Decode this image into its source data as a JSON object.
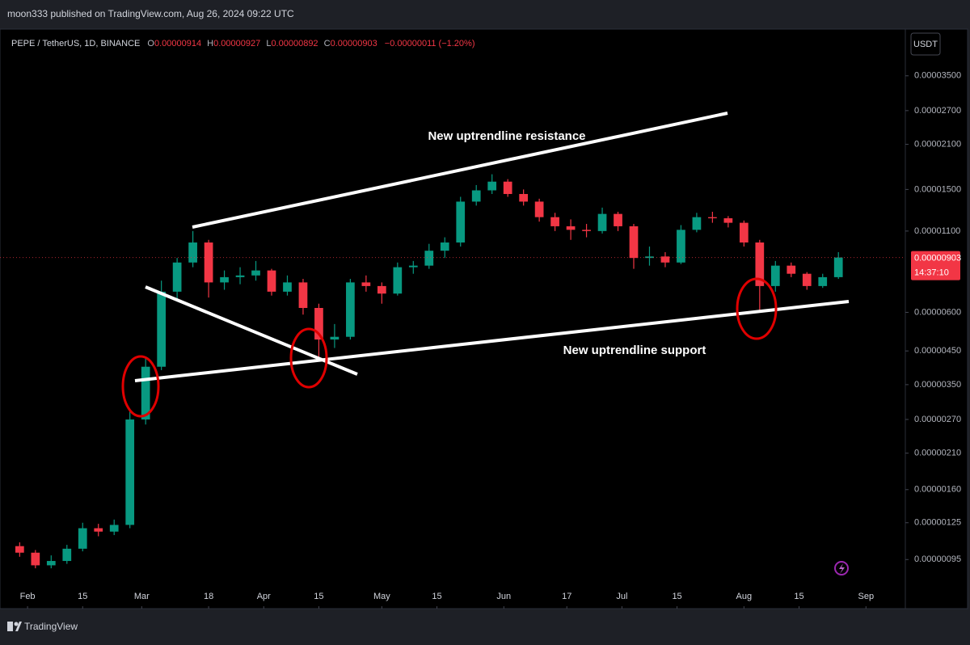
{
  "header": {
    "published": "moon333 published on TradingView.com, Aug 26, 2024 09:22 UTC"
  },
  "chart_data": {
    "type": "candlestick",
    "title": "PEPE / TetherUS, 1D, BINANCE",
    "ohlc_legend": [
      {
        "key": "O",
        "value": "0.00000914"
      },
      {
        "key": "H",
        "value": "0.00000927"
      },
      {
        "key": "L",
        "value": "0.00000892"
      },
      {
        "key": "C",
        "value": "0.00000903"
      }
    ],
    "change": "−0.00000011 (−1.20%)",
    "currency": "USDT",
    "up_color": "#089981",
    "down_color": "#f23645",
    "log_scale": true,
    "x": [
      "01-30",
      "02-03",
      "02-07",
      "02-11",
      "02-15",
      "02-19",
      "02-23",
      "02-27",
      "03-02",
      "03-06",
      "03-10",
      "03-14",
      "03-18",
      "03-22",
      "03-26",
      "03-30",
      "04-03",
      "04-07",
      "04-11",
      "04-15",
      "04-19",
      "04-23",
      "04-27",
      "05-01",
      "05-05",
      "05-09",
      "05-13",
      "05-17",
      "05-21",
      "05-25",
      "05-29",
      "06-02",
      "06-06",
      "06-10",
      "06-14",
      "06-18",
      "06-22",
      "06-26",
      "06-30",
      "07-04",
      "07-08",
      "07-12",
      "07-16",
      "07-20",
      "07-24",
      "07-28",
      "08-01",
      "08-05",
      "08-09",
      "08-13",
      "08-17",
      "08-21",
      "08-25"
    ],
    "open": [
      1.05e-06,
      1e-06,
      9.1e-07,
      9.4e-07,
      1.03e-06,
      1.2e-06,
      1.17e-06,
      1.23e-06,
      2.7e-06,
      4e-06,
      7e-06,
      8.7e-06,
      1.01e-05,
      7.5e-06,
      7.8e-06,
      7.9e-06,
      8.2e-06,
      7e-06,
      7.5e-06,
      6.2e-06,
      4.9e-06,
      5e-06,
      7.5e-06,
      7.3e-06,
      6.9e-06,
      8.4e-06,
      8.5e-06,
      9.5e-06,
      1.01e-05,
      1.37e-05,
      1.49e-05,
      1.59e-05,
      1.45e-05,
      1.37e-05,
      1.22e-05,
      1.14e-05,
      1.11e-05,
      1.1e-05,
      1.25e-05,
      1.14e-05,
      9e-06,
      9.1e-06,
      8.7e-06,
      1.11e-05,
      1.22e-05,
      1.21e-05,
      1.17e-05,
      1.01e-05,
      7.3e-06,
      8.5e-06,
      8e-06,
      7.3e-06,
      7.8e-06
    ],
    "high": [
      1.08e-06,
      1.02e-06,
      9.8e-07,
      1.06e-06,
      1.25e-06,
      1.24e-06,
      1.28e-06,
      2.9e-06,
      4.3e-06,
      7.6e-06,
      9e-06,
      1.1e-05,
      1.03e-05,
      8.2e-06,
      8.4e-06,
      8.8e-06,
      8.3e-06,
      7.9e-06,
      7.7e-06,
      6.4e-06,
      5.5e-06,
      7.7e-06,
      7.9e-06,
      7.5e-06,
      8.7e-06,
      8.8e-06,
      1e-05,
      1.05e-05,
      1.42e-05,
      1.55e-05,
      1.68e-05,
      1.62e-05,
      1.5e-05,
      1.4e-05,
      1.26e-05,
      1.2e-05,
      1.16e-05,
      1.31e-05,
      1.27e-05,
      1.16e-05,
      9.8e-06,
      9.4e-06,
      1.15e-05,
      1.26e-05,
      1.27e-05,
      1.23e-05,
      1.19e-05,
      1.03e-05,
      8.8e-06,
      8.7e-06,
      8.1e-06,
      8e-06,
      9.4e-06
    ],
    "low": [
      9.7e-07,
      8.9e-07,
      8.9e-07,
      9.2e-07,
      1.01e-06,
      1.13e-06,
      1.14e-06,
      1.2e-06,
      2.6e-06,
      3.9e-06,
      6.5e-06,
      8.4e-06,
      6.7e-06,
      7.1e-06,
      7.4e-06,
      7.6e-06,
      6.8e-06,
      6.8e-06,
      5.9e-06,
      4.3e-06,
      4.6e-06,
      4.9e-06,
      7e-06,
      6.4e-06,
      6.8e-06,
      8e-06,
      8.3e-06,
      9e-06,
      9.8e-06,
      1.33e-05,
      1.45e-05,
      1.42e-05,
      1.33e-05,
      1.18e-05,
      1.1e-05,
      1.03e-05,
      1.05e-05,
      1.08e-05,
      1.1e-05,
      8.3e-06,
      8.5e-06,
      8.4e-06,
      8.6e-06,
      1.09e-05,
      1.17e-05,
      1.13e-05,
      9.8e-06,
      6.1e-06,
      7e-06,
      7.8e-06,
      7.1e-06,
      7.2e-06,
      7.7e-06
    ],
    "close": [
      1e-06,
      9.1e-07,
      9.4e-07,
      1.03e-06,
      1.2e-06,
      1.17e-06,
      1.23e-06,
      2.7e-06,
      4e-06,
      7e-06,
      8.7e-06,
      1.01e-05,
      7.5e-06,
      7.8e-06,
      7.9e-06,
      8.2e-06,
      7e-06,
      7.5e-06,
      6.2e-06,
      4.9e-06,
      5e-06,
      7.5e-06,
      7.3e-06,
      6.9e-06,
      8.4e-06,
      8.5e-06,
      9.5e-06,
      1.01e-05,
      1.37e-05,
      1.49e-05,
      1.59e-05,
      1.45e-05,
      1.37e-05,
      1.22e-05,
      1.14e-05,
      1.11e-05,
      1.1e-05,
      1.25e-05,
      1.14e-05,
      9e-06,
      9.1e-06,
      8.7e-06,
      1.11e-05,
      1.22e-05,
      1.21e-05,
      1.17e-05,
      1.01e-05,
      7.3e-06,
      8.5e-06,
      8e-06,
      7.3e-06,
      7.8e-06,
      9.03e-06
    ],
    "xlim": [
      "01-25",
      "09-11"
    ],
    "xticks": [
      {
        "value": "02-01",
        "label": "Feb"
      },
      {
        "value": "02-15",
        "label": "15"
      },
      {
        "value": "03-01",
        "label": "Mar"
      },
      {
        "value": "03-18",
        "label": "18"
      },
      {
        "value": "04-01",
        "label": "Apr"
      },
      {
        "value": "04-15",
        "label": "15"
      },
      {
        "value": "05-01",
        "label": "May"
      },
      {
        "value": "05-15",
        "label": "15"
      },
      {
        "value": "06-01",
        "label": "Jun"
      },
      {
        "value": "06-17",
        "label": "17"
      },
      {
        "value": "07-01",
        "label": "Jul"
      },
      {
        "value": "07-15",
        "label": "15"
      },
      {
        "value": "08-01",
        "label": "Aug"
      },
      {
        "value": "08-15",
        "label": "15"
      },
      {
        "value": "09-01",
        "label": "Sep"
      }
    ],
    "ylim": [
      7.8e-07,
      4.84e-05
    ],
    "yticks": [
      {
        "value": 3.5e-05,
        "label": "0.00003500"
      },
      {
        "value": 2.7e-05,
        "label": "0.00002700"
      },
      {
        "value": 2.1e-05,
        "label": "0.00002100"
      },
      {
        "value": 1.5e-05,
        "label": "0.00001500"
      },
      {
        "value": 1.1e-05,
        "label": "0.00001100"
      },
      {
        "value": 6e-06,
        "label": "0.00000600"
      },
      {
        "value": 4.5e-06,
        "label": "0.00000450"
      },
      {
        "value": 3.5e-06,
        "label": "0.00000350"
      },
      {
        "value": 2.7e-06,
        "label": "0.00000270"
      },
      {
        "value": 2.1e-06,
        "label": "0.00000210"
      },
      {
        "value": 1.6e-06,
        "label": "0.00000160"
      },
      {
        "value": 1.25e-06,
        "label": "0.00000125"
      },
      {
        "value": 9.5e-07,
        "label": "0.00000095"
      }
    ],
    "last_price": {
      "value": 9.03e-06,
      "label": "0.00000903"
    },
    "countdown": "14:37:10",
    "annotations": [
      "New uptrendline resistance",
      "New uptrendline support"
    ]
  },
  "footer": {
    "brand": "TradingView"
  }
}
